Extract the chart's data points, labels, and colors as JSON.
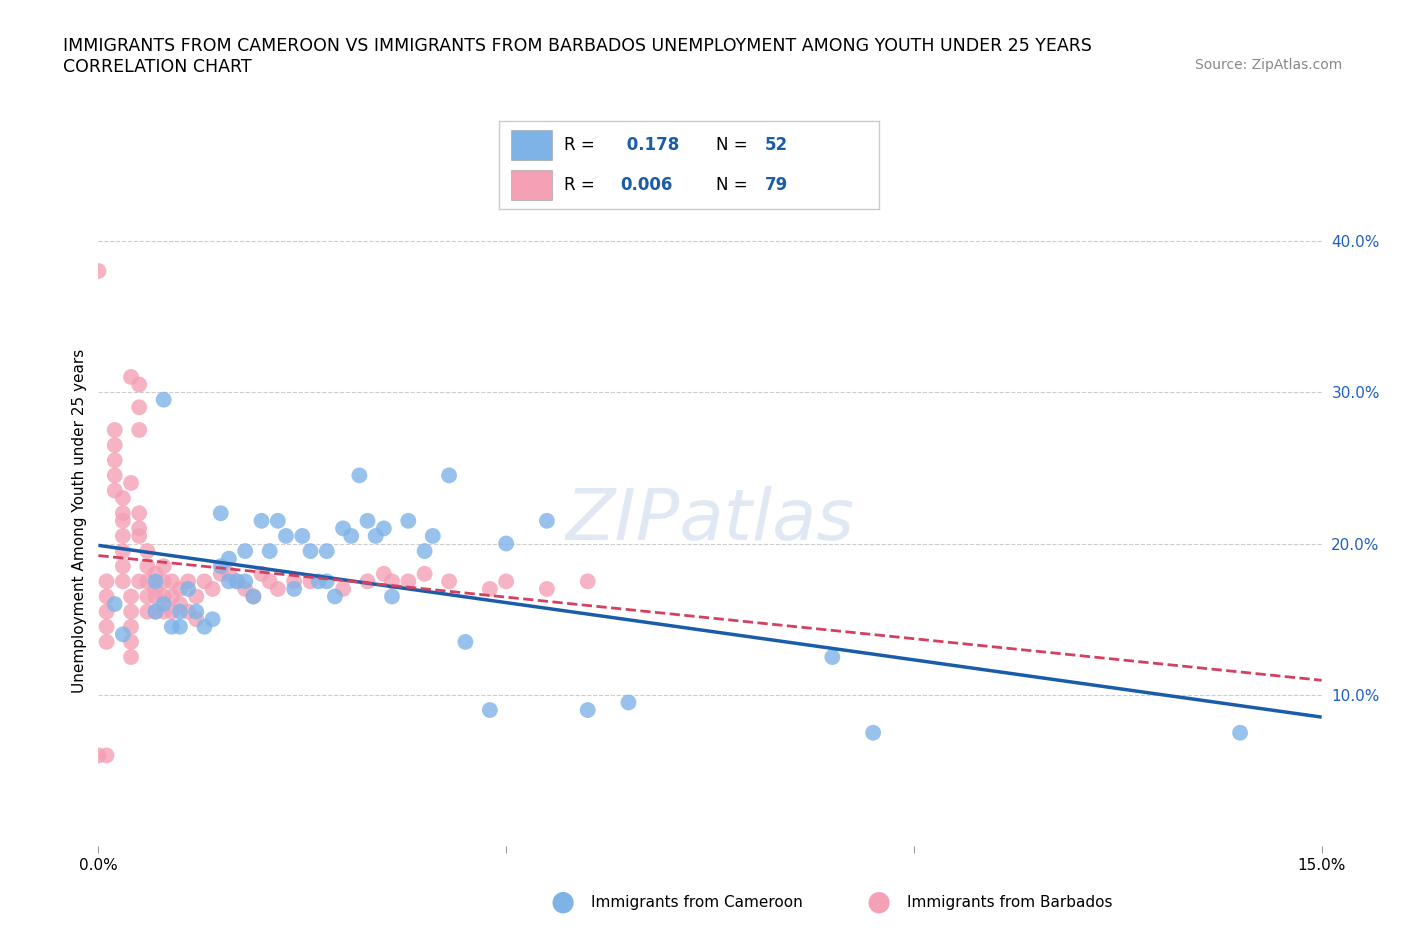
{
  "title_line1": "IMMIGRANTS FROM CAMEROON VS IMMIGRANTS FROM BARBADOS UNEMPLOYMENT AMONG YOUTH UNDER 25 YEARS",
  "title_line2": "CORRELATION CHART",
  "source_text": "Source: ZipAtlas.com",
  "ylabel": "Unemployment Among Youth under 25 years",
  "xlim": [
    0.0,
    0.15
  ],
  "ylim": [
    0.0,
    0.43
  ],
  "grid_color": "#cccccc",
  "background_color": "#ffffff",
  "legend_R1": "0.178",
  "legend_N1": "52",
  "legend_R2": "0.006",
  "legend_N2": "79",
  "color_cameroon": "#7eb3e8",
  "color_barbados": "#f4a0b5",
  "trendline_cameroon_color": "#1a5ca8",
  "trendline_barbados_color": "#d44060",
  "cameroon_x": [
    0.002,
    0.003,
    0.007,
    0.007,
    0.008,
    0.008,
    0.009,
    0.01,
    0.01,
    0.011,
    0.012,
    0.013,
    0.014,
    0.015,
    0.015,
    0.016,
    0.016,
    0.017,
    0.018,
    0.018,
    0.019,
    0.02,
    0.021,
    0.022,
    0.023,
    0.024,
    0.025,
    0.026,
    0.027,
    0.028,
    0.028,
    0.029,
    0.03,
    0.031,
    0.032,
    0.033,
    0.034,
    0.035,
    0.036,
    0.038,
    0.04,
    0.041,
    0.043,
    0.045,
    0.048,
    0.05,
    0.055,
    0.06,
    0.065,
    0.09,
    0.095,
    0.14
  ],
  "cameroon_y": [
    0.16,
    0.14,
    0.175,
    0.155,
    0.295,
    0.16,
    0.145,
    0.155,
    0.145,
    0.17,
    0.155,
    0.145,
    0.15,
    0.22,
    0.185,
    0.19,
    0.175,
    0.175,
    0.195,
    0.175,
    0.165,
    0.215,
    0.195,
    0.215,
    0.205,
    0.17,
    0.205,
    0.195,
    0.175,
    0.195,
    0.175,
    0.165,
    0.21,
    0.205,
    0.245,
    0.215,
    0.205,
    0.21,
    0.165,
    0.215,
    0.195,
    0.205,
    0.245,
    0.135,
    0.09,
    0.2,
    0.215,
    0.09,
    0.095,
    0.125,
    0.075,
    0.075
  ],
  "barbados_x": [
    0.0,
    0.0,
    0.001,
    0.001,
    0.001,
    0.001,
    0.001,
    0.001,
    0.002,
    0.002,
    0.002,
    0.002,
    0.002,
    0.003,
    0.003,
    0.003,
    0.003,
    0.003,
    0.003,
    0.003,
    0.004,
    0.004,
    0.004,
    0.004,
    0.004,
    0.004,
    0.004,
    0.005,
    0.005,
    0.005,
    0.005,
    0.005,
    0.005,
    0.005,
    0.006,
    0.006,
    0.006,
    0.006,
    0.006,
    0.007,
    0.007,
    0.007,
    0.007,
    0.008,
    0.008,
    0.008,
    0.008,
    0.009,
    0.009,
    0.009,
    0.01,
    0.01,
    0.011,
    0.011,
    0.012,
    0.012,
    0.013,
    0.014,
    0.015,
    0.016,
    0.017,
    0.018,
    0.019,
    0.02,
    0.021,
    0.022,
    0.024,
    0.026,
    0.03,
    0.033,
    0.035,
    0.036,
    0.038,
    0.04,
    0.043,
    0.048,
    0.05,
    0.055,
    0.06
  ],
  "barbados_y": [
    0.38,
    0.06,
    0.175,
    0.165,
    0.155,
    0.145,
    0.135,
    0.06,
    0.275,
    0.265,
    0.255,
    0.245,
    0.235,
    0.23,
    0.22,
    0.215,
    0.205,
    0.195,
    0.185,
    0.175,
    0.165,
    0.155,
    0.145,
    0.135,
    0.125,
    0.24,
    0.31,
    0.305,
    0.29,
    0.275,
    0.22,
    0.21,
    0.205,
    0.175,
    0.195,
    0.185,
    0.175,
    0.165,
    0.155,
    0.18,
    0.17,
    0.165,
    0.155,
    0.185,
    0.175,
    0.165,
    0.155,
    0.175,
    0.165,
    0.155,
    0.17,
    0.16,
    0.175,
    0.155,
    0.165,
    0.15,
    0.175,
    0.17,
    0.18,
    0.18,
    0.175,
    0.17,
    0.165,
    0.18,
    0.175,
    0.17,
    0.175,
    0.175,
    0.17,
    0.175,
    0.18,
    0.175,
    0.175,
    0.18,
    0.175,
    0.17,
    0.175,
    0.17,
    0.175
  ]
}
